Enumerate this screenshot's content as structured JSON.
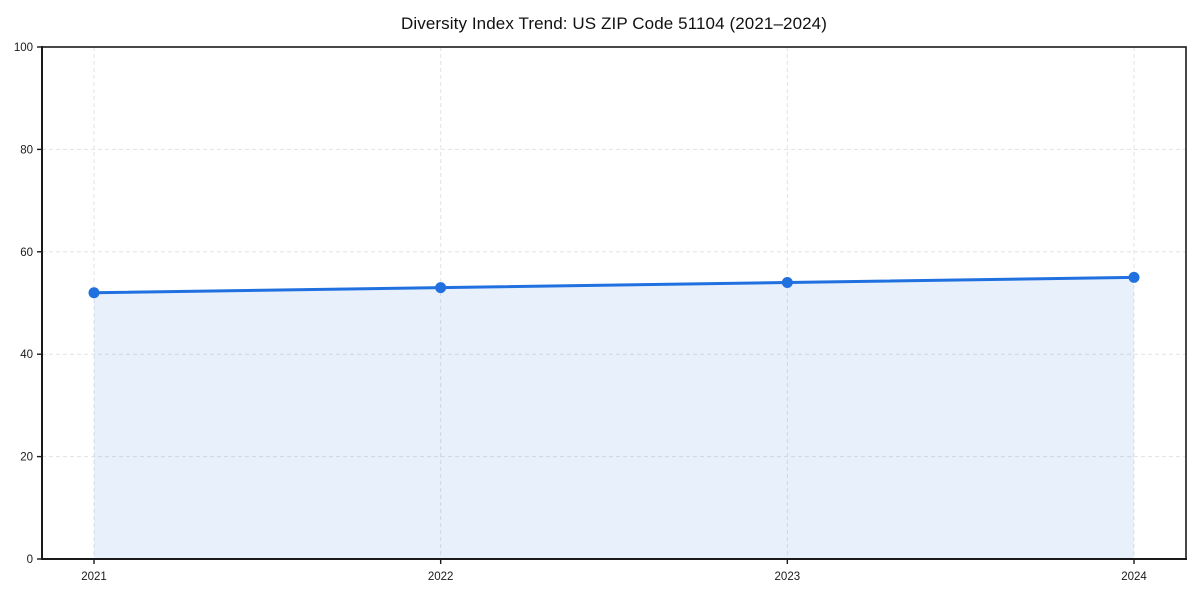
{
  "chart_data": {
    "type": "line",
    "title": "Diversity Index Trend: US ZIP Code 51104 (2021–2024)",
    "categories": [
      "2021",
      "2022",
      "2023",
      "2024"
    ],
    "series": [
      {
        "name": "Diversity Index",
        "values": [
          52,
          53,
          54,
          55
        ]
      }
    ],
    "xlabel": "",
    "ylabel": "",
    "ylim": [
      0,
      100
    ],
    "yticks": [
      0,
      20,
      40,
      60,
      80,
      100
    ],
    "grid": "dashed",
    "legend": "none",
    "area": true,
    "colors": {
      "line": "#2170e0",
      "marker": "#2170e0",
      "fill": "rgba(33,112,224,0.10)",
      "grid": "#e3e3e3",
      "spine": "#1a1a1a",
      "tick_text": "#1a1a1a"
    }
  }
}
